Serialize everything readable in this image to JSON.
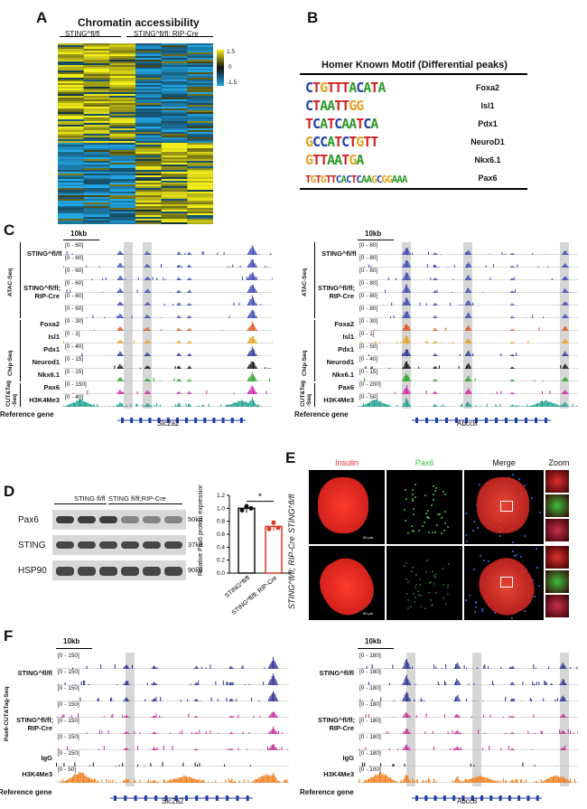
{
  "panels": {
    "A": {
      "label": "A",
      "title": "Chromatin accessibility",
      "group1": "STING^fl/fl",
      "group2": "STING^fl/fl; RIP-Cre",
      "scale_max": "1.5",
      "scale_mid": "0",
      "scale_min": "-1.5",
      "colors": {
        "high": "#f2ee1a",
        "mid": "#111111",
        "low": "#22a7e6"
      }
    },
    "B": {
      "label": "B",
      "title": "Homer Known Motif (Differential peaks)",
      "motifs": [
        {
          "seq": "CTGTTTACATA",
          "name": "Foxa2"
        },
        {
          "seq": "CTAATTGG",
          "name": "Isl1"
        },
        {
          "seq": "TCATCAATCA",
          "name": "Pdx1"
        },
        {
          "seq": "GCCATCTGTT",
          "name": "NeuroD1"
        },
        {
          "seq": "GTTAATGA",
          "name": "Nkx6.1"
        },
        {
          "seq": "TGTGTTCACTCAAGCGGAAA",
          "name": "Pax6"
        }
      ]
    },
    "C": {
      "label": "C",
      "scalebar": "10kb",
      "left": {
        "groups": {
          "atac": "ATAC-Seq",
          "chip": "Chip-Seq",
          "cut": "CUT&Tag -Seq"
        },
        "sting_ff": "STING^fl/fl",
        "sting_cre": "STING^fl/fl; RIP-Cre",
        "atac_ranges": [
          "[0 - 60]",
          "[0 - 60]",
          "[0 - 60]",
          "[0 - 60]",
          "[0 - 60]",
          "[0 - 60]"
        ],
        "chip_tracks": [
          {
            "name": "Foxa2",
            "range": "[0 - 30]",
            "color": "#e0521b"
          },
          {
            "name": "Isl1",
            "range": "[0 - 1]",
            "color": "#e8a21c"
          },
          {
            "name": "Pdx1",
            "range": "[0 - 40]",
            "color": "#2a3392"
          },
          {
            "name": "Neurod1",
            "range": "[0 - 15]",
            "color": "#111111"
          },
          {
            "name": "Nkx6.1",
            "range": "[0 - 15]",
            "color": "#27a327"
          }
        ],
        "cut_tracks": [
          {
            "name": "Pax6",
            "range": "[0 - 150]",
            "color": "#d01fb0"
          },
          {
            "name": "H3K4Me3",
            "range": "[0 - 40]",
            "color": "#1b9e8f"
          }
        ],
        "reference": "Reference gene",
        "gene": "Slc2a2"
      },
      "right": {
        "scalebar": "10kb",
        "sting_ff": "STING^fl/fl",
        "sting_cre": "STING^fl/fl; RIP-Cre",
        "atac_ranges": [
          "[0 - 80]",
          "[0 - 80]",
          "[0 - 80]",
          "[0 - 80]",
          "[0 - 80]",
          "[0 - 80]"
        ],
        "chip_tracks": [
          {
            "name": "Foxa2",
            "range": "[0 - 30]",
            "color": "#e0521b"
          },
          {
            "name": "Isl1",
            "range": "[0 - 1]",
            "color": "#e8a21c"
          },
          {
            "name": "Pdx1",
            "range": "[0 - 50]",
            "color": "#2a3392"
          },
          {
            "name": "Neurod1",
            "range": "[0 - 40]",
            "color": "#111111"
          },
          {
            "name": "Nkx6.1",
            "range": "[0 - 15]",
            "color": "#27a327"
          }
        ],
        "cut_tracks": [
          {
            "name": "Pax6",
            "range": "[0 - 200]",
            "color": "#d01fb0"
          },
          {
            "name": "H3K4Me3",
            "range": "[0 - 50]",
            "color": "#1b9e8f"
          }
        ],
        "reference": "Reference gene",
        "gene": "Abcc8"
      }
    },
    "D": {
      "label": "D",
      "col1": "STING fl/fl",
      "col2": "STING fl/fl;RIP-Cre",
      "rows": [
        {
          "name": "Pax6",
          "kda": "50kd"
        },
        {
          "name": "STING",
          "kda": "37kd"
        },
        {
          "name": "HSP90",
          "kda": "90kd"
        }
      ],
      "ylabel": "Relative Pax6 protein expression",
      "yticks": [
        "1.2",
        "1.0",
        "0.8",
        "0.6",
        "0.4",
        "0.2",
        "0.0"
      ],
      "sig": "*",
      "xcats": [
        "STING^fl/fl",
        "STING^fl/fl; RIP-Cre"
      ]
    },
    "E": {
      "label": "E",
      "cols": [
        "Insulin",
        "Pax6",
        "Merge",
        "Zoom"
      ],
      "rows": [
        "STING^fl/fl",
        "STING^fl/fl; RIP-Cre"
      ],
      "scale": "50 μm"
    },
    "F": {
      "label": "F",
      "ylabel": "Pax6-CUT&Tag-Seq",
      "left": {
        "scalebar": "10kb",
        "sting_ff": "STING^fl/fl",
        "sting_cre": "STING^fl/fl; RIP-Cre",
        "ranges": [
          "[0 - 150]",
          "[0 - 150]",
          "[0 - 150]",
          "[0 - 150]",
          "[0 - 150]",
          "[0 - 150]",
          "[0 - 150]",
          "[0 - 50]"
        ],
        "igg": "IgG",
        "h3": "H3K4Me3",
        "reference": "Reference gene",
        "gene": "Slc2a2"
      },
      "right": {
        "scalebar": "10kb",
        "sting_ff": "STING^fl/fl",
        "sting_cre": "STING^fl/fl; RIP-Cre",
        "ranges": [
          "[0 - 180]",
          "[0 - 180]",
          "[0 - 180]",
          "[0 - 180]",
          "[0 - 180]",
          "[0 - 180]",
          "[0 - 180]",
          "[0 - 100]"
        ],
        "igg": "IgG",
        "h3": "H3K4Me3",
        "reference": "Reference gene",
        "gene": "Abcc8"
      }
    }
  },
  "chart_data": {
    "type": "bar",
    "categories": [
      "STING^fl/fl",
      "STING^fl/fl; RIP-Cre"
    ],
    "values": [
      1.0,
      0.72
    ],
    "points": [
      [
        0.97,
        1.03,
        1.0
      ],
      [
        0.68,
        0.78,
        0.7
      ]
    ],
    "ylabel": "Relative Pax6 protein expression",
    "ylim": [
      0,
      1.2
    ],
    "colors": [
      "#111111",
      "#d9362a"
    ]
  }
}
